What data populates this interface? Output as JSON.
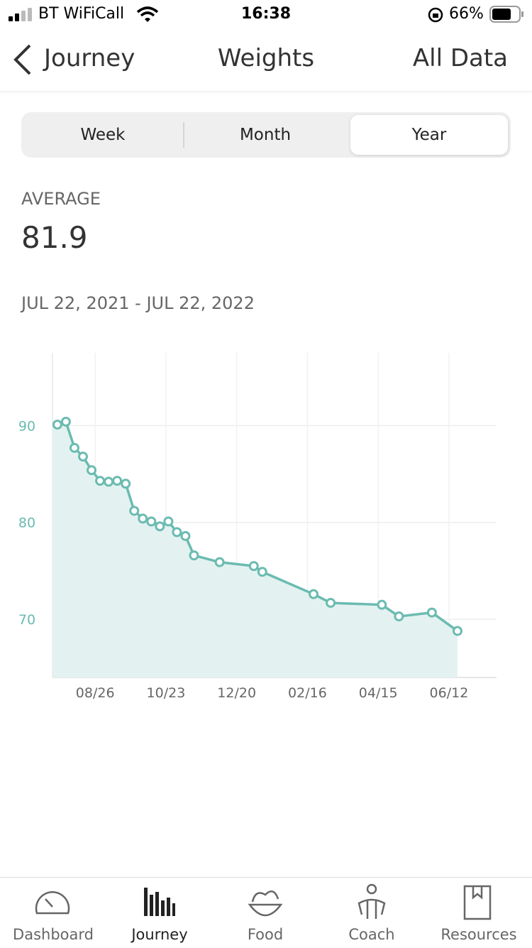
{
  "status_bar": {
    "carrier": "BT WiFiCall",
    "time": "16:38",
    "battery": "66%"
  },
  "nav": {
    "back": "Journey",
    "title": "Weights",
    "action": "All Data"
  },
  "segments": [
    "Week",
    "Month",
    "Year"
  ],
  "selected_segment": "Year",
  "average": {
    "label": "AVERAGE",
    "value": "81.9"
  },
  "date_range": "JUL 22, 2021 - JUL 22, 2022",
  "chart_data": {
    "type": "line",
    "x": [
      "07/26",
      "08/02",
      "08/09",
      "08/16",
      "08/23",
      "08/30",
      "09/06",
      "09/13",
      "09/20",
      "09/27",
      "10/04",
      "10/11",
      "10/18",
      "10/25",
      "11/01",
      "11/08",
      "11/15",
      "12/06",
      "01/03",
      "01/10",
      "02/21",
      "03/07",
      "04/18",
      "05/02",
      "05/29",
      "06/19"
    ],
    "values": [
      90.1,
      90.4,
      87.7,
      86.8,
      85.4,
      84.3,
      84.2,
      84.3,
      84.0,
      81.2,
      80.4,
      80.1,
      79.6,
      80.1,
      79.0,
      78.6,
      76.6,
      75.9,
      75.5,
      74.9,
      72.6,
      71.7,
      71.5,
      70.3,
      70.7,
      68.8
    ],
    "color": "#6bbbb1",
    "fill_color": "#e3f2f0",
    "xlim": [
      "07/22",
      "07/21"
    ],
    "xticks": [
      "08/26",
      "10/23",
      "12/20",
      "02/16",
      "04/15",
      "06/12"
    ],
    "ylim": [
      64,
      97.5
    ],
    "yticks": [
      70,
      80,
      90
    ],
    "grid": true
  },
  "tab_bar": [
    "Dashboard",
    "Journey",
    "Food",
    "Coach",
    "Resources"
  ],
  "selected_tab": "Journey"
}
